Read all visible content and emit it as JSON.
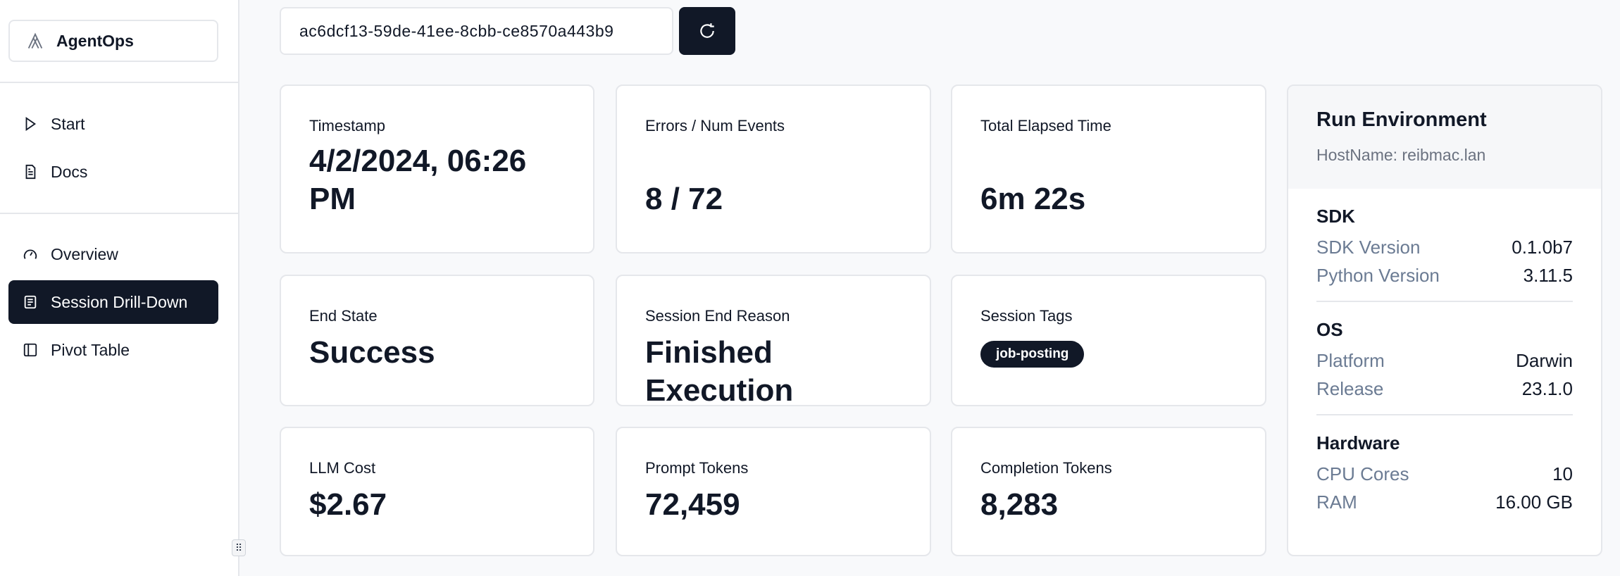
{
  "app": {
    "name": "AgentOps"
  },
  "sidebar": {
    "items": [
      {
        "label": "Start",
        "icon": "play-icon"
      },
      {
        "label": "Docs",
        "icon": "document-icon"
      },
      {
        "label": "Overview",
        "icon": "gauge-icon"
      },
      {
        "label": "Session Drill-Down",
        "icon": "list-icon",
        "active": true
      },
      {
        "label": "Pivot Table",
        "icon": "panel-icon"
      }
    ]
  },
  "session": {
    "id": "ac6dcf13-59de-41ee-8cbb-ce8570a443b9"
  },
  "stats": [
    {
      "label": "Timestamp",
      "value": "4/2/2024, 06:26 PM"
    },
    {
      "label": "Errors / Num Events",
      "value": "8 / 72"
    },
    {
      "label": "Total Elapsed Time",
      "value": "6m 22s"
    },
    {
      "label": "End State",
      "value": "Success"
    },
    {
      "label": "Session End Reason",
      "value": "Finished Execution"
    },
    {
      "label": "Session Tags",
      "tags": [
        "job-posting"
      ]
    },
    {
      "label": "LLM Cost",
      "value": "$2.67"
    },
    {
      "label": "Prompt Tokens",
      "value": "72,459"
    },
    {
      "label": "Completion Tokens",
      "value": "8,283"
    }
  ],
  "env": {
    "title": "Run Environment",
    "host": "HostName: reibmac.lan",
    "sections": [
      {
        "title": "SDK",
        "rows": [
          {
            "k": "SDK Version",
            "v": "0.1.0b7"
          },
          {
            "k": "Python Version",
            "v": "3.11.5"
          }
        ]
      },
      {
        "title": "OS",
        "rows": [
          {
            "k": "Platform",
            "v": "Darwin"
          },
          {
            "k": "Release",
            "v": "23.1.0"
          }
        ]
      },
      {
        "title": "Hardware",
        "rows": [
          {
            "k": "CPU Cores",
            "v": "10"
          },
          {
            "k": "RAM",
            "v": "16.00 GB"
          }
        ]
      }
    ]
  }
}
